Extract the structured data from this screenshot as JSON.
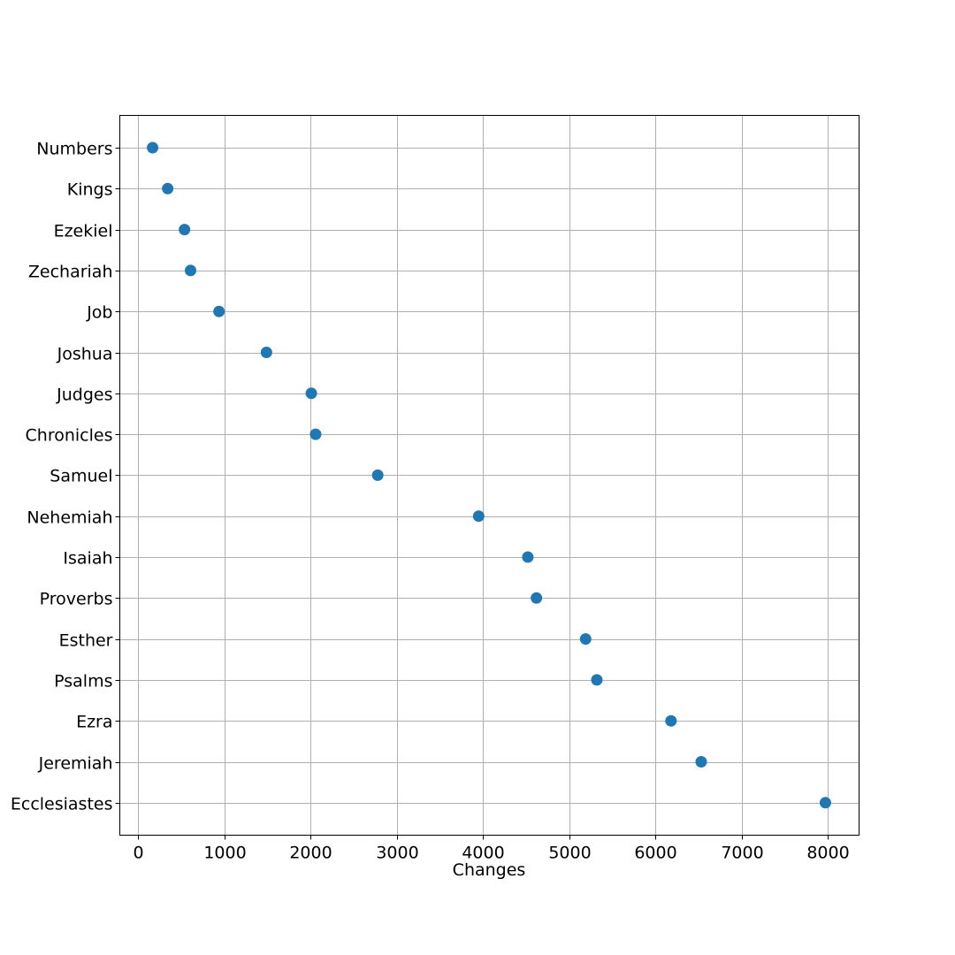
{
  "chart_data": {
    "type": "scatter",
    "title": "",
    "xlabel": "Changes",
    "ylabel": "",
    "xlim": [
      -210,
      8360
    ],
    "x_ticks": [
      0,
      1000,
      2000,
      3000,
      4000,
      5000,
      6000,
      7000,
      8000
    ],
    "grid": true,
    "marker_color": "#1f77b4",
    "categories": [
      "Numbers",
      "Kings",
      "Ezekiel",
      "Zechariah",
      "Job",
      "Joshua",
      "Judges",
      "Chronicles",
      "Samuel",
      "Nehemiah",
      "Isaiah",
      "Proverbs",
      "Esther",
      "Psalms",
      "Ezra",
      "Jeremiah",
      "Ecclesiastes"
    ],
    "values": [
      170,
      345,
      540,
      610,
      940,
      1490,
      2010,
      2060,
      2780,
      3950,
      4520,
      4620,
      5190,
      5320,
      6180,
      6530,
      7970
    ]
  }
}
